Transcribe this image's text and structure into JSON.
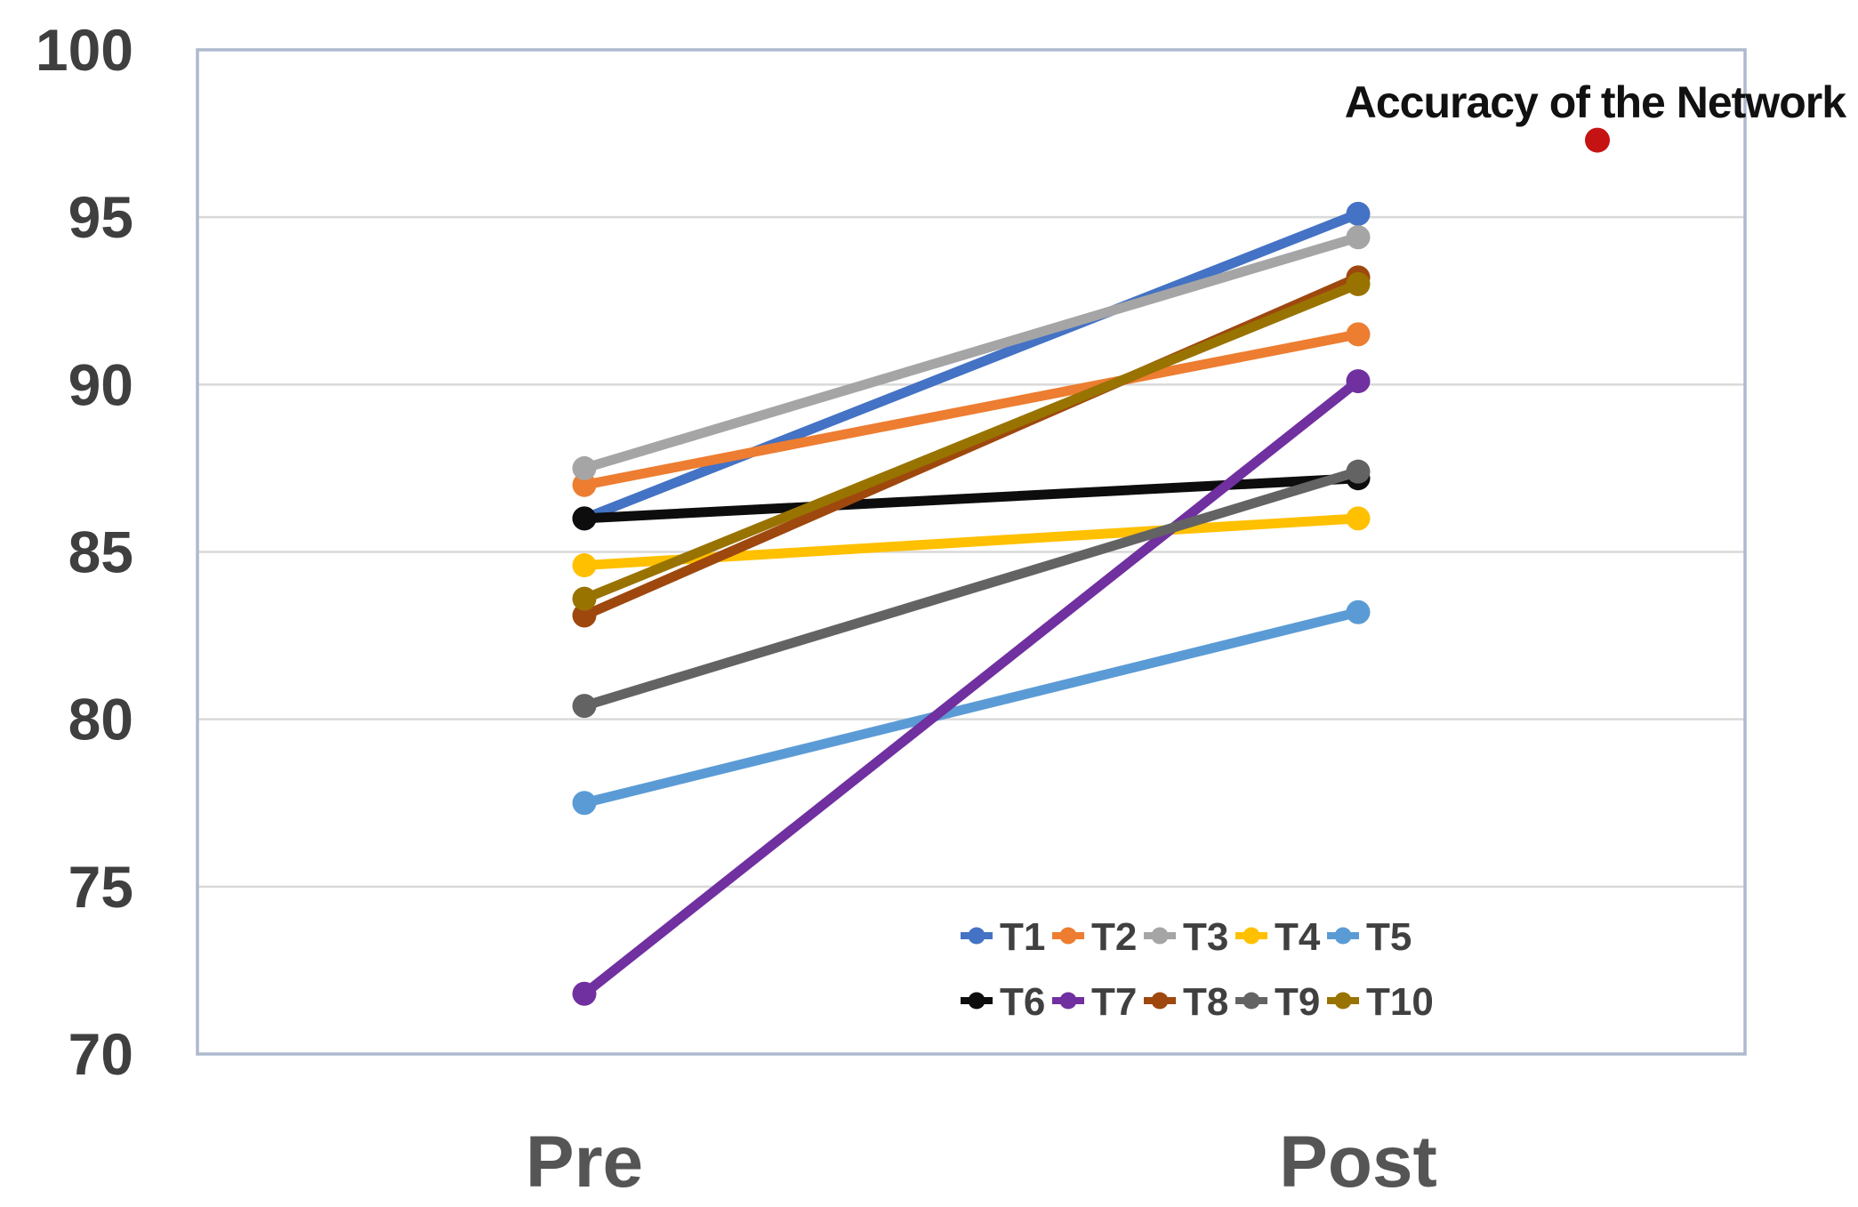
{
  "chart_data": {
    "type": "line",
    "title": "Accuracy of the Network",
    "categories": [
      "Pre",
      "Post"
    ],
    "series": [
      {
        "name": "T1",
        "color": "#4472C4",
        "values": [
          86.0,
          95.1
        ]
      },
      {
        "name": "T2",
        "color": "#ED7D31",
        "values": [
          87.0,
          91.5
        ]
      },
      {
        "name": "T3",
        "color": "#A5A5A5",
        "values": [
          87.5,
          94.4
        ]
      },
      {
        "name": "T4",
        "color": "#FFC000",
        "values": [
          84.6,
          86.0
        ]
      },
      {
        "name": "T5",
        "color": "#5B9BD5",
        "values": [
          77.5,
          83.2
        ]
      },
      {
        "name": "T6",
        "color": "#0D0D0D",
        "values": [
          86.0,
          87.2
        ]
      },
      {
        "name": "T7",
        "color": "#7030A0",
        "values": [
          71.8,
          90.1
        ]
      },
      {
        "name": "T8",
        "color": "#9E480E",
        "values": [
          83.1,
          93.2
        ]
      },
      {
        "name": "T9",
        "color": "#636363",
        "values": [
          80.4,
          87.4
        ]
      },
      {
        "name": "T10",
        "color": "#997300",
        "values": [
          83.6,
          93.0
        ]
      }
    ],
    "ylim": [
      70,
      100
    ],
    "yticks": [
      70,
      75,
      80,
      85,
      90,
      95,
      100
    ],
    "grid": true,
    "legend_position": "inside-bottom-right",
    "legend_rows": [
      [
        "T1",
        "T2",
        "T3",
        "T4",
        "T5"
      ],
      [
        "T6",
        "T7",
        "T8",
        "T9",
        "T10"
      ]
    ],
    "annotation": {
      "label": "Accuracy of the Network",
      "dot_color": "#C51212",
      "dot_value": 97.3
    },
    "colors": {
      "plot_border": "#ADB9CD",
      "gridline": "#D9D9D9",
      "y_tick_label": "#3F3F3F",
      "category_label": "#555555",
      "legend_label": "#404040",
      "title": "#111111",
      "background": "#FFFFFF"
    }
  }
}
